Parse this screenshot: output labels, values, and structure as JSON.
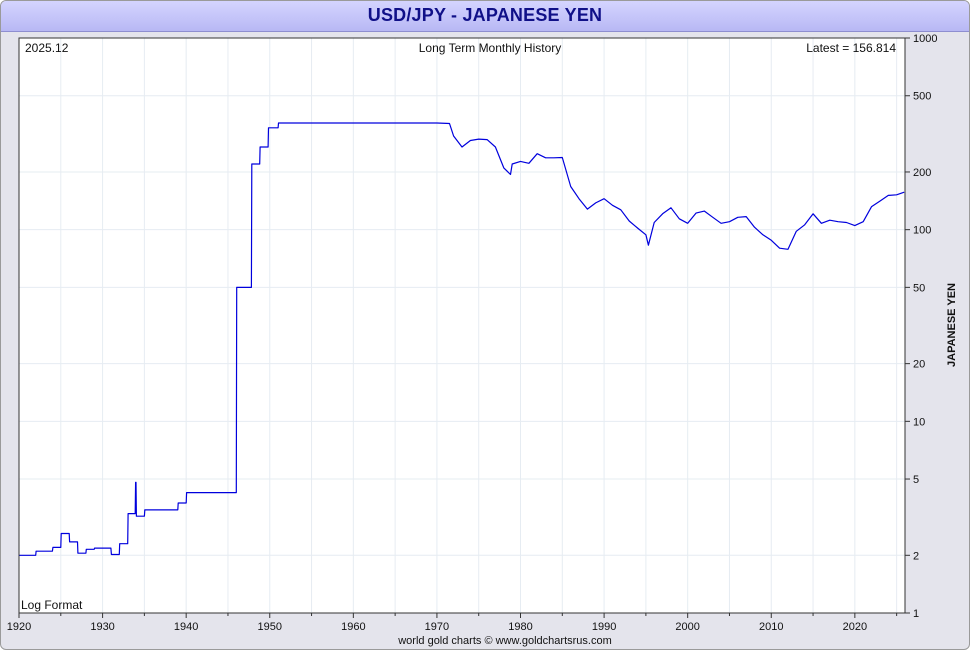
{
  "chart_data": {
    "type": "line",
    "title": "USD/JPY - JAPANESE YEN",
    "subtitle": "Long Term Monthly History",
    "date_label": "2025.12",
    "latest_label": "Latest = 156.814",
    "scale_label": "Log Format",
    "credit": "world gold charts © www.goldchartsrus.com",
    "ylabel": "JAPANESE YEN",
    "xlabel": "",
    "y_scale": "log",
    "ylim": [
      1,
      1000
    ],
    "xlim": [
      1920,
      2026
    ],
    "x_ticks": [
      1920,
      1930,
      1940,
      1950,
      1960,
      1970,
      1980,
      1990,
      2000,
      2010,
      2020
    ],
    "y_ticks": [
      1,
      2,
      5,
      10,
      20,
      50,
      100,
      200,
      500,
      1000
    ],
    "grid": true,
    "line_color": "#0000dd",
    "series": [
      {
        "x": [
          1920,
          1922,
          1922.05,
          1924,
          1924.05,
          1925,
          1925.05,
          1926,
          1926.05,
          1927,
          1927.05,
          1928,
          1928.05,
          1929,
          1929.05,
          1931,
          1931.05,
          1932,
          1932.05,
          1933,
          1933.05,
          1933.9,
          1933.95,
          1934,
          1934.05,
          1935,
          1935.05,
          1939,
          1939.05,
          1940,
          1940.05,
          1946,
          1946.05,
          1947.8,
          1947.85,
          1948.8,
          1948.85,
          1949.8,
          1949.85,
          1951,
          1951.05,
          1960,
          1965,
          1970,
          1971.5,
          1972,
          1973,
          1974,
          1975,
          1976,
          1977,
          1978,
          1978.8,
          1979,
          1980,
          1981,
          1982,
          1983,
          1984,
          1985,
          1986,
          1987,
          1988,
          1989,
          1990,
          1991,
          1992,
          1993,
          1994,
          1995,
          1995.3,
          1996,
          1997,
          1998,
          1999,
          2000,
          2001,
          2002,
          2003,
          2004,
          2005,
          2006,
          2007,
          2008,
          2009,
          2010,
          2011,
          2012,
          2013,
          2014,
          2015,
          2016,
          2017,
          2018,
          2019,
          2020,
          2021,
          2022,
          2023,
          2024,
          2025,
          2025.9
        ],
        "values": [
          2.0,
          2.0,
          2.1,
          2.1,
          2.2,
          2.2,
          2.6,
          2.6,
          2.35,
          2.35,
          2.05,
          2.05,
          2.15,
          2.15,
          2.18,
          2.18,
          2.02,
          2.02,
          2.3,
          2.3,
          3.3,
          3.3,
          4.8,
          4.8,
          3.2,
          3.2,
          3.45,
          3.45,
          3.75,
          3.75,
          4.25,
          4.25,
          50,
          50,
          220,
          220,
          270,
          270,
          340,
          340,
          360,
          360,
          360,
          360,
          358,
          308,
          270,
          292,
          297,
          295,
          270,
          210,
          194,
          220,
          227,
          222,
          249,
          237,
          237,
          238,
          168,
          145,
          128,
          138,
          145,
          134,
          127,
          111,
          102,
          94,
          83,
          109,
          121,
          130,
          114,
          108,
          122,
          125,
          116,
          108,
          110,
          116,
          117,
          103,
          94,
          88,
          80,
          79,
          98,
          106,
          121,
          108,
          112,
          110,
          109,
          105,
          110,
          132,
          141,
          151,
          152,
          156.8
        ]
      }
    ]
  }
}
